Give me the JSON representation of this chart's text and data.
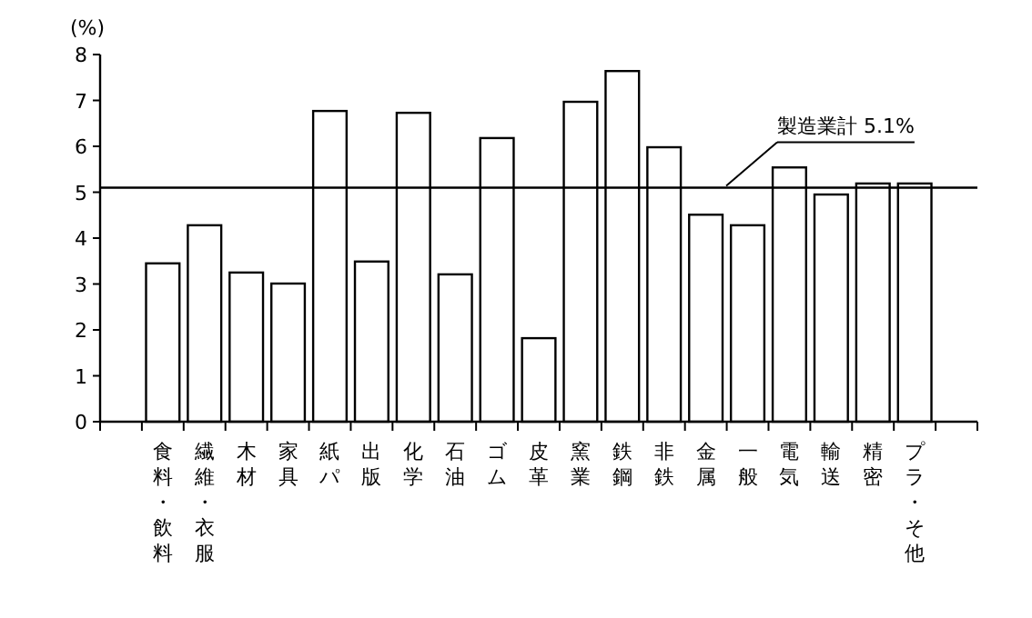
{
  "chart_data": {
    "type": "bar",
    "ylabel": "(%)",
    "categories": [
      "食料・飲料",
      "繊維・衣服",
      "木材",
      "家具",
      "紙パ",
      "出版",
      "化学",
      "石油",
      "ゴム",
      "皮革",
      "窯業",
      "鉄鋼",
      "非鉄",
      "金属",
      "一般",
      "電気",
      "輸送",
      "精密",
      "プラ・そ他"
    ],
    "values": [
      3.45,
      4.28,
      3.25,
      3.01,
      6.77,
      3.49,
      6.73,
      3.21,
      6.18,
      1.82,
      6.97,
      7.64,
      5.98,
      4.51,
      4.28,
      5.54,
      4.95,
      5.19,
      5.19
    ],
    "color": "#ffffff",
    "ylim": [
      0,
      8
    ],
    "yticks": [
      0,
      1,
      2,
      3,
      4,
      5,
      6,
      7,
      8
    ],
    "ref_lines": [
      {
        "axis": "y",
        "value": 5.1,
        "label": "製造業計 5.1%",
        "color": "#000000"
      }
    ]
  }
}
